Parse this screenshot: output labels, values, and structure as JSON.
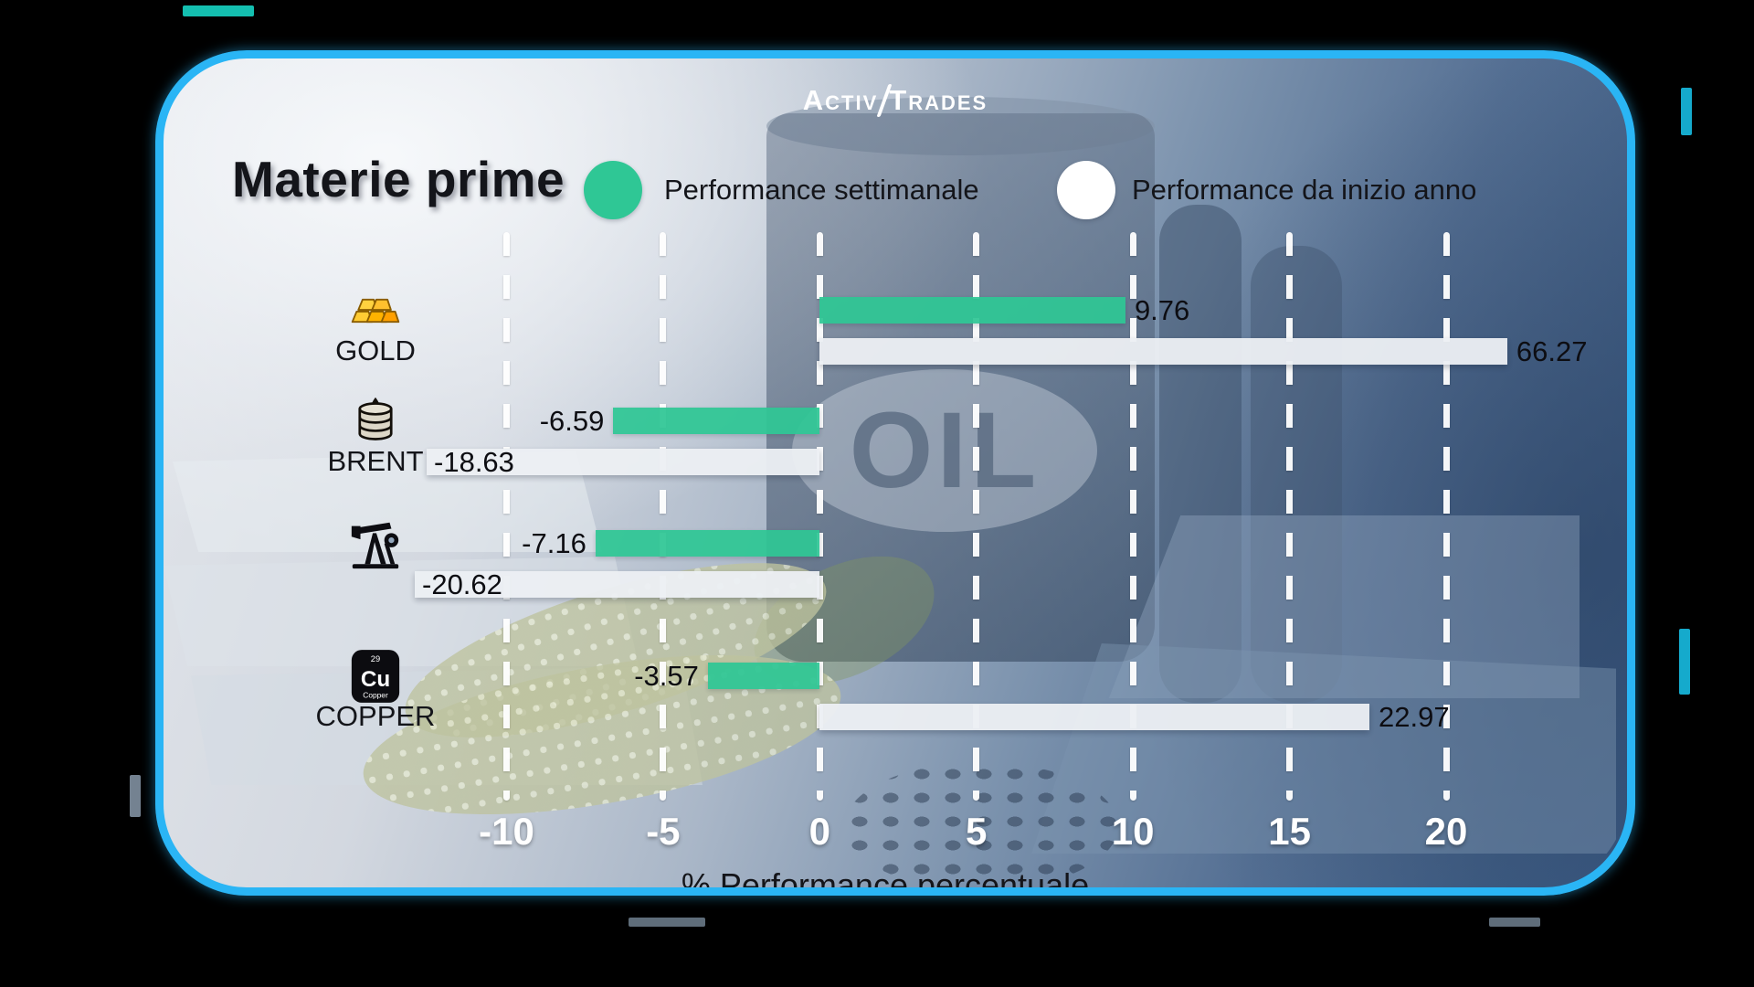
{
  "brand": {
    "name": "ActivTrades",
    "left": "Activ",
    "right": "Trades"
  },
  "header": {
    "title": "Materie prime"
  },
  "legend": [
    {
      "label": "Performance settimanale",
      "color": "#2fc795"
    },
    {
      "label": "Performance da inizio anno",
      "color": "#ffffff"
    }
  ],
  "decor": {
    "oil_text": "OIL"
  },
  "copper_icon": {
    "number": "29",
    "symbol": "Cu",
    "name": "Copper"
  },
  "chart_data": {
    "type": "bar",
    "orientation": "horizontal",
    "title": "Materie prime",
    "xlabel": "% Performance percentuale",
    "xticks": [
      -10,
      -5,
      0,
      5,
      10,
      15,
      20
    ],
    "xlim": [
      -12.9,
      22.1
    ],
    "grid": "vertical-dashed-white",
    "legend_position": "top",
    "categories": [
      "GOLD",
      "BRENT",
      "",
      "COPPER"
    ],
    "series": [
      {
        "name": "Performance settimanale",
        "color": "#2fc795",
        "values": [
          9.76,
          -6.59,
          -7.16,
          -3.57
        ]
      },
      {
        "name": "Performance da inizio anno",
        "color": "#edf0f4",
        "values": [
          66.27,
          -18.63,
          -20.62,
          22.97
        ]
      }
    ]
  },
  "rows": [
    {
      "label": "GOLD",
      "icon": "gold-bars",
      "weekly": {
        "value": 9.76,
        "text": "9.76",
        "label_side": "end"
      },
      "ytd": {
        "value": 66.27,
        "text": "66.27",
        "label_side": "end",
        "display": 21.95
      }
    },
    {
      "label": "BRENT",
      "icon": "oil-barrel",
      "weekly": {
        "value": -6.59,
        "text": "-6.59",
        "label_side": "start-outside"
      },
      "ytd": {
        "value": -18.63,
        "text": "-18.63",
        "label_side": "start-inside",
        "display": -12.55
      }
    },
    {
      "label": "",
      "icon": "pump-jack",
      "weekly": {
        "value": -7.16,
        "text": "-7.16",
        "label_side": "start-outside"
      },
      "ytd": {
        "value": -20.62,
        "text": "-20.62",
        "label_side": "start-inside",
        "display": -12.93
      }
    },
    {
      "label": "COPPER",
      "icon": "copper-element",
      "weekly": {
        "value": -3.57,
        "text": "-3.57",
        "label_side": "start-outside"
      },
      "ytd": {
        "value": 22.97,
        "text": "22.97",
        "label_side": "end",
        "display": 17.55
      }
    }
  ]
}
